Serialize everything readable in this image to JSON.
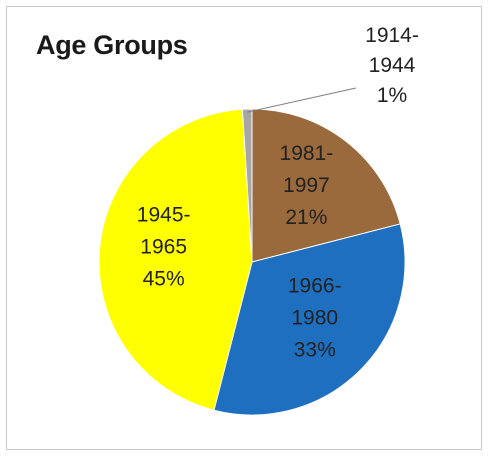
{
  "chart_data": {
    "type": "pie",
    "title": "Age Groups",
    "slices": [
      {
        "label_lines": [
          "1981-",
          "1997",
          "21%"
        ],
        "category": "1981-1997",
        "value": 21,
        "color": "#9b6a3c"
      },
      {
        "label_lines": [
          "1966-",
          "1980",
          "33%"
        ],
        "category": "1966-1980",
        "value": 33,
        "color": "#1f6fc0"
      },
      {
        "label_lines": [
          "1945-",
          "1965",
          "45%"
        ],
        "category": "1945-1965",
        "value": 45,
        "color": "#ffff00"
      },
      {
        "label_lines": [
          "1914-",
          "1944",
          "1%"
        ],
        "category": "1914-1944",
        "value": 1,
        "color": "#a6a6a6"
      }
    ],
    "start_angle_deg": 0,
    "direction": "clockwise",
    "legend": "none",
    "outside_label_with_leader": "1914-1944"
  }
}
